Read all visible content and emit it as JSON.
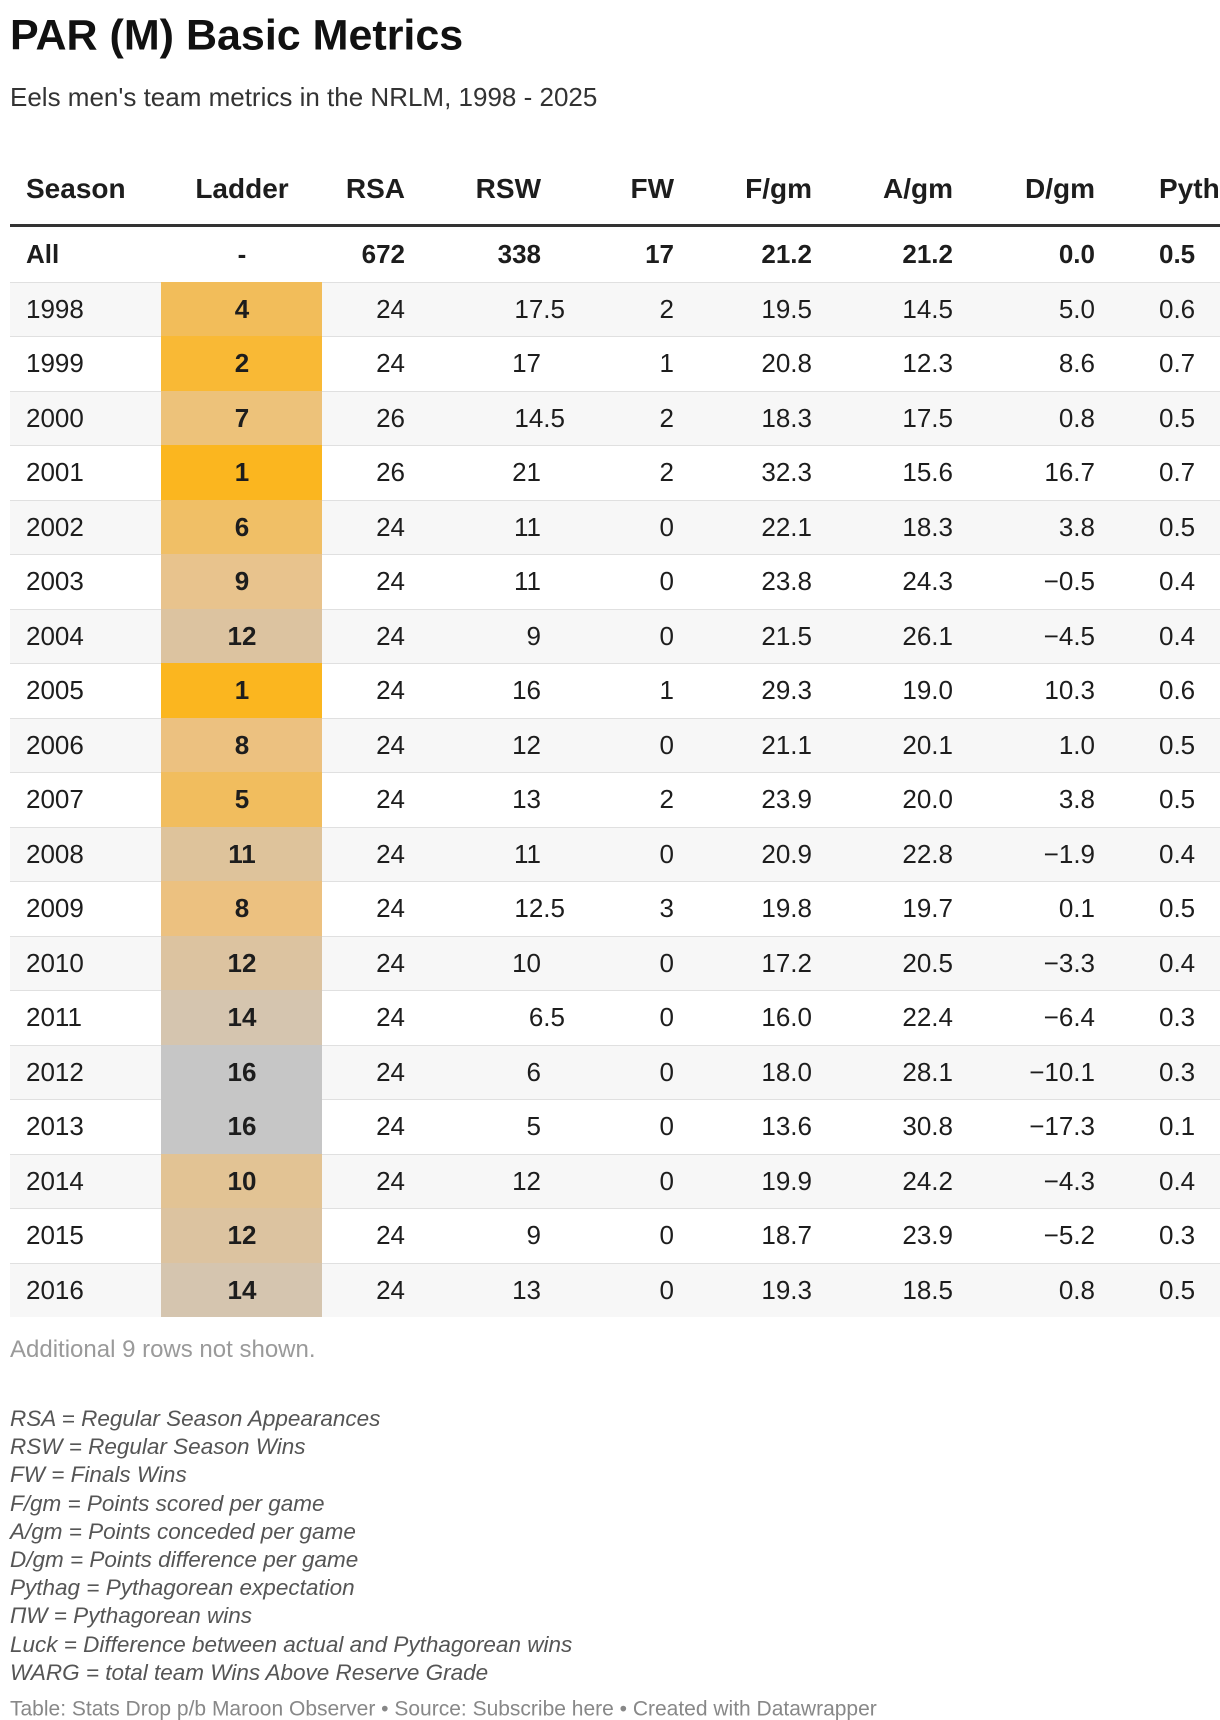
{
  "header": {
    "title": "PAR (M) Basic Metrics",
    "subtitle": "Eels men's team metrics in the NRLM, 1998 - 2025"
  },
  "table": {
    "columns": [
      "Season",
      "Ladder",
      "RSA",
      "RSW",
      "FW",
      "F/gm",
      "A/gm",
      "D/gm",
      "Pyth"
    ],
    "rows": [
      [
        "All",
        "-",
        "672",
        "338",
        "17",
        "21.2",
        "21.2",
        "0.0",
        "0.5"
      ],
      [
        "1998",
        "4",
        "24",
        "17.5",
        "2",
        "19.5",
        "14.5",
        "5.0",
        "0.6"
      ],
      [
        "1999",
        "2",
        "24",
        "17",
        "1",
        "20.8",
        "12.3",
        "8.6",
        "0.7"
      ],
      [
        "2000",
        "7",
        "26",
        "14.5",
        "2",
        "18.3",
        "17.5",
        "0.8",
        "0.5"
      ],
      [
        "2001",
        "1",
        "26",
        "21",
        "2",
        "32.3",
        "15.6",
        "16.7",
        "0.7"
      ],
      [
        "2002",
        "6",
        "24",
        "11",
        "0",
        "22.1",
        "18.3",
        "3.8",
        "0.5"
      ],
      [
        "2003",
        "9",
        "24",
        "11",
        "0",
        "23.8",
        "24.3",
        "−0.5",
        "0.4"
      ],
      [
        "2004",
        "12",
        "24",
        "9",
        "0",
        "21.5",
        "26.1",
        "−4.5",
        "0.4"
      ],
      [
        "2005",
        "1",
        "24",
        "16",
        "1",
        "29.3",
        "19.0",
        "10.3",
        "0.6"
      ],
      [
        "2006",
        "8",
        "24",
        "12",
        "0",
        "21.1",
        "20.1",
        "1.0",
        "0.5"
      ],
      [
        "2007",
        "5",
        "24",
        "13",
        "2",
        "23.9",
        "20.0",
        "3.8",
        "0.5"
      ],
      [
        "2008",
        "11",
        "24",
        "11",
        "0",
        "20.9",
        "22.8",
        "−1.9",
        "0.4"
      ],
      [
        "2009",
        "8",
        "24",
        "12.5",
        "3",
        "19.8",
        "19.7",
        "0.1",
        "0.5"
      ],
      [
        "2010",
        "12",
        "24",
        "10",
        "0",
        "17.2",
        "20.5",
        "−3.3",
        "0.4"
      ],
      [
        "2011",
        "14",
        "24",
        "6.5",
        "0",
        "16.0",
        "22.4",
        "−6.4",
        "0.3"
      ],
      [
        "2012",
        "16",
        "24",
        "6",
        "0",
        "18.0",
        "28.1",
        "−10.1",
        "0.3"
      ],
      [
        "2013",
        "16",
        "24",
        "5",
        "0",
        "13.6",
        "30.8",
        "−17.3",
        "0.1"
      ],
      [
        "2014",
        "10",
        "24",
        "12",
        "0",
        "19.9",
        "24.2",
        "−4.3",
        "0.4"
      ],
      [
        "2015",
        "12",
        "24",
        "9",
        "0",
        "18.7",
        "23.9",
        "−5.2",
        "0.3"
      ],
      [
        "2016",
        "14",
        "24",
        "13",
        "0",
        "19.3",
        "18.5",
        "0.8",
        "0.5"
      ]
    ],
    "ladder_colors": [
      null,
      "#f2bd5a",
      "#f9b935",
      "#edc27a",
      "#fbb61f",
      "#f0bf66",
      "#e8c38d",
      "#dcc3a0",
      "#fbb61f",
      "#ecc180",
      "#f1bd5e",
      "#dec39b",
      "#ecc180",
      "#dcc3a0",
      "#d5c5af",
      "#c6c6c6",
      "#c6c6c6",
      "#e2c394",
      "#dcc3a0",
      "#d5c5af"
    ]
  },
  "footer": {
    "more_rows": "Additional 9 rows not shown.",
    "notes": [
      "RSA = Regular Season Appearances",
      "RSW = Regular Season Wins",
      "FW = Finals Wins",
      "F/gm = Points scored per game",
      "A/gm = Points conceded per game",
      "D/gm = Points difference per game",
      "Pythag = Pythagorean expectation",
      "ΠW = Pythagorean wins",
      "Luck = Difference between actual and Pythagorean wins",
      "WARG = total team Wins Above Reserve Grade"
    ],
    "source": "Table: Stats Drop p/b Maroon Observer • Source: Subscribe here • Created with Datawrapper"
  }
}
